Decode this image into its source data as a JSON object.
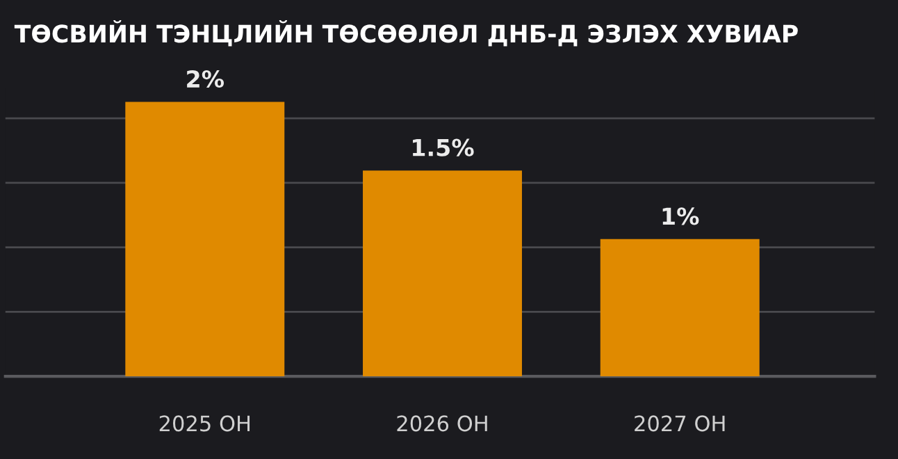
{
  "chart_data": {
    "type": "bar",
    "title": "ТӨСВИЙН ТЭНЦЛИЙН ТӨСӨӨЛӨЛ ДНБ-Д ЭЗЛЭХ ХУВИАР",
    "categories": [
      "2025 ОН",
      "2026 ОН",
      "2027 ОН"
    ],
    "values": [
      2,
      1.5,
      1
    ],
    "value_labels": [
      "2%",
      "1.5%",
      "1%"
    ],
    "color": "#e08a00",
    "yticks": [
      {
        "value": 0,
        "label": null
      },
      {
        "value": 0.47,
        "label": null
      },
      {
        "value": 0.94,
        "label": null
      },
      {
        "value": 1.41,
        "label": null
      },
      {
        "value": 1.88,
        "label": null
      }
    ],
    "tick_labels": "x",
    "grid": "y"
  }
}
